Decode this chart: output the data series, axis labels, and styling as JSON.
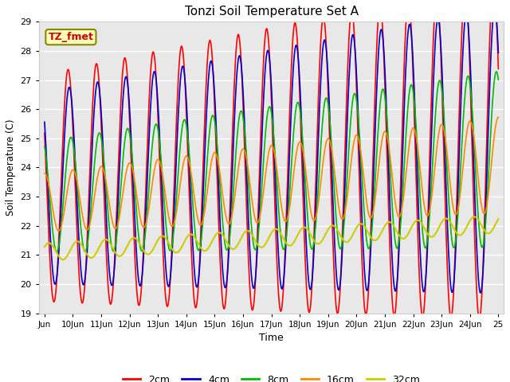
{
  "title": "Tonzi Soil Temperature Set A",
  "xlabel": "Time",
  "ylabel": "Soil Temperature (C)",
  "ylim": [
    19.0,
    29.0
  ],
  "yticks": [
    19.0,
    20.0,
    21.0,
    22.0,
    23.0,
    24.0,
    25.0,
    26.0,
    27.0,
    28.0,
    29.0
  ],
  "line_colors": {
    "2cm": "#ff0000",
    "4cm": "#0000cc",
    "8cm": "#00bb00",
    "16cm": "#ff8800",
    "32cm": "#cccc00"
  },
  "annotation_label": "TZ_fmet",
  "annotation_bg": "#ffffbb",
  "annotation_border": "#888800",
  "annotation_text_color": "#cc0000",
  "fig_bg": "#ffffff",
  "plot_bg": "#e8e8e8",
  "grid_color": "#ffffff",
  "num_points": 800
}
